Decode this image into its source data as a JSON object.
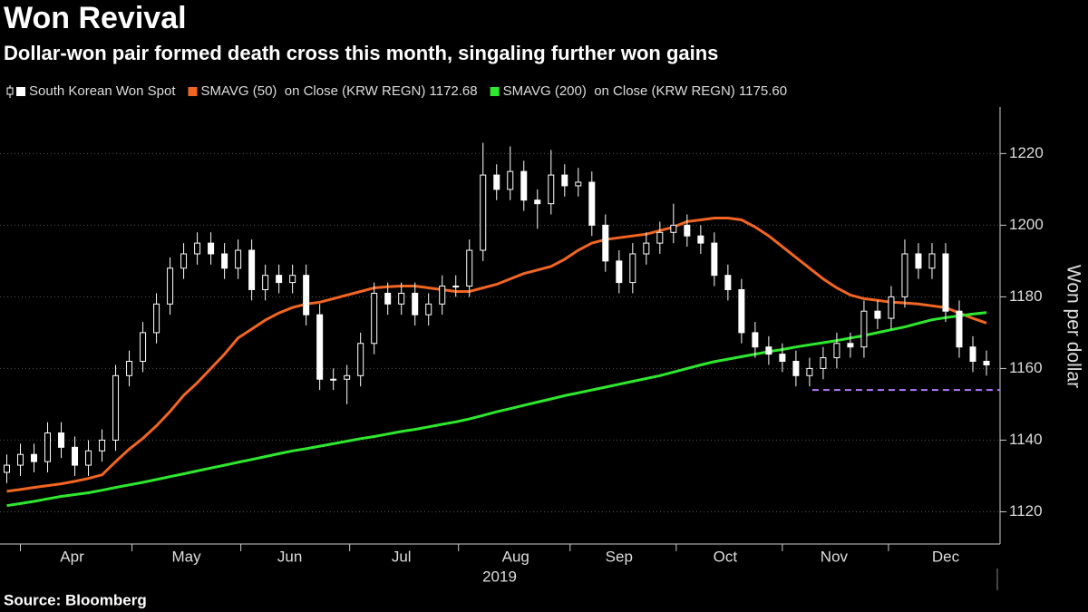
{
  "chart_data": {
    "type": "candlestick",
    "title": "Won Revival",
    "subtitle": "Dollar-won pair formed death cross this month, singaling further won gains",
    "source": "Source: Bloomberg",
    "y_label": "Won per dollar",
    "x_label": "2019",
    "categories": [
      null,
      null,
      null,
      null,
      null,
      null,
      null,
      null,
      null,
      null,
      null,
      null,
      null,
      null,
      null,
      null,
      null,
      null,
      null,
      null,
      null,
      null,
      null,
      null,
      null,
      null,
      null,
      null,
      null,
      null,
      null,
      null,
      null,
      null,
      null,
      null,
      null,
      null,
      null,
      null,
      null,
      null,
      null,
      null,
      null,
      null,
      null,
      null,
      null,
      null,
      null,
      null,
      null,
      null,
      null,
      null,
      null,
      null,
      null,
      null,
      null,
      null,
      null,
      null,
      null,
      null,
      null,
      null,
      null,
      null,
      null,
      null,
      null
    ],
    "candles": {
      "name": "South Korean Won Spot",
      "color": "#ffffff",
      "open": [
        1131,
        1133,
        1136,
        1134,
        1142,
        1138,
        1133,
        1137,
        1140,
        1158,
        1162,
        1170,
        1178,
        1188,
        1192,
        1195,
        1192,
        1188,
        1193,
        1182,
        1186,
        1184,
        1186,
        1175,
        1157,
        1157,
        1158,
        1167,
        1181,
        1178,
        1181,
        1175,
        1178,
        1183,
        1183,
        1193,
        1214,
        1210,
        1215,
        1207,
        1206,
        1214,
        1211,
        1212,
        1200,
        1190,
        1184,
        1192,
        1195,
        1198,
        1200,
        1197,
        1195,
        1186,
        1182,
        1170,
        1166,
        1164,
        1162,
        1158,
        1160,
        1163,
        1167,
        1166,
        1176,
        1174,
        1180,
        1192,
        1188,
        1192,
        1176,
        1166,
        1162
      ],
      "high": [
        1136,
        1139,
        1139,
        1145,
        1145,
        1141,
        1140,
        1143,
        1161,
        1165,
        1173,
        1181,
        1191,
        1195,
        1198,
        1198,
        1195,
        1196,
        1196,
        1189,
        1189,
        1189,
        1189,
        1178,
        1160,
        1161,
        1170,
        1184,
        1184,
        1184,
        1184,
        1181,
        1186,
        1186,
        1196,
        1223,
        1217,
        1222,
        1218,
        1210,
        1221,
        1217,
        1216,
        1215,
        1203,
        1193,
        1195,
        1198,
        1201,
        1206,
        1203,
        1200,
        1198,
        1189,
        1185,
        1173,
        1169,
        1167,
        1165,
        1163,
        1166,
        1170,
        1170,
        1179,
        1179,
        1183,
        1196,
        1195,
        1195,
        1195,
        1179,
        1169,
        1165
      ],
      "low": [
        1128,
        1130,
        1131,
        1131,
        1135,
        1130,
        1130,
        1134,
        1137,
        1155,
        1159,
        1167,
        1175,
        1185,
        1189,
        1189,
        1185,
        1185,
        1179,
        1179,
        1181,
        1181,
        1172,
        1154,
        1154,
        1150,
        1155,
        1164,
        1175,
        1175,
        1172,
        1172,
        1175,
        1180,
        1180,
        1190,
        1207,
        1207,
        1204,
        1199,
        1203,
        1208,
        1208,
        1197,
        1187,
        1181,
        1181,
        1189,
        1192,
        1195,
        1194,
        1192,
        1183,
        1179,
        1167,
        1163,
        1161,
        1159,
        1155,
        1155,
        1157,
        1160,
        1163,
        1163,
        1171,
        1171,
        1177,
        1185,
        1185,
        1173,
        1163,
        1159,
        1158
      ],
      "close": [
        1133,
        1136,
        1134,
        1142,
        1138,
        1133,
        1137,
        1140,
        1158,
        1162,
        1170,
        1178,
        1188,
        1192,
        1195,
        1192,
        1188,
        1193,
        1182,
        1186,
        1184,
        1186,
        1175,
        1157,
        1157,
        1158,
        1167,
        1181,
        1178,
        1181,
        1175,
        1178,
        1183,
        1183,
        1193,
        1214,
        1210,
        1215,
        1207,
        1206,
        1214,
        1211,
        1212,
        1200,
        1190,
        1184,
        1192,
        1195,
        1198,
        1200,
        1197,
        1195,
        1186,
        1182,
        1170,
        1166,
        1164,
        1162,
        1158,
        1160,
        1163,
        1167,
        1166,
        1176,
        1174,
        1180,
        1192,
        1188,
        1192,
        1176,
        1166,
        1162,
        1161
      ]
    },
    "series": [
      {
        "name": "SMAVG (50)  on Close (KRW REGN) 1172.68",
        "color": "#f26522",
        "values": [
          1125.7,
          1126.2,
          1126.8,
          1127.3,
          1127.8,
          1128.5,
          1129.3,
          1130.3,
          1134,
          1137.5,
          1140.5,
          1144,
          1148,
          1152.5,
          1156,
          1160,
          1164,
          1168.5,
          1171,
          1173.5,
          1175.5,
          1177,
          1178,
          1178.5,
          1179.5,
          1180.5,
          1181.5,
          1182.5,
          1182.8,
          1183,
          1183,
          1182.5,
          1182,
          1181.5,
          1181.5,
          1182.5,
          1183.5,
          1185,
          1186.5,
          1187.5,
          1188.5,
          1190.5,
          1193,
          1195,
          1196,
          1196.5,
          1197,
          1197.5,
          1198.5,
          1199.5,
          1201,
          1201.5,
          1202,
          1202,
          1201.5,
          1199.5,
          1197,
          1194,
          1191,
          1188,
          1185,
          1182.5,
          1180.5,
          1179.5,
          1179,
          1178.5,
          1178.3,
          1178,
          1177.5,
          1177,
          1175.5,
          1174,
          1172.68
        ]
      },
      {
        "name": "SMAVG (200)  on Close (KRW REGN) 1175.60",
        "color": "#2ee82e",
        "values": [
          1121.7,
          1122.3,
          1122.9,
          1123.6,
          1124.3,
          1124.8,
          1125.3,
          1126,
          1126.8,
          1127.5,
          1128.2,
          1129,
          1129.8,
          1130.6,
          1131.4,
          1132.2,
          1133,
          1133.8,
          1134.6,
          1135.4,
          1136.2,
          1137,
          1137.6,
          1138.3,
          1139,
          1139.7,
          1140.4,
          1141,
          1141.7,
          1142.4,
          1143,
          1143.7,
          1144.4,
          1145.1,
          1145.9,
          1146.9,
          1147.9,
          1148.8,
          1149.7,
          1150.6,
          1151.5,
          1152.4,
          1153.2,
          1154,
          1154.8,
          1155.6,
          1156.4,
          1157.2,
          1158,
          1159,
          1160,
          1161,
          1161.9,
          1162.6,
          1163.3,
          1164,
          1164.7,
          1165.3,
          1166,
          1166.6,
          1167.2,
          1167.8,
          1168.5,
          1169.2,
          1170,
          1170.8,
          1171.6,
          1172.6,
          1173.6,
          1174.2,
          1174.7,
          1175.2,
          1175.6
        ]
      }
    ],
    "reference_line": {
      "y": 1154,
      "x_start": 59.2,
      "color": "#b37bff",
      "dashed": true
    },
    "xlim": [
      -0.5,
      73
    ],
    "xticks": [
      {
        "value": 4.8,
        "label": "Apr"
      },
      {
        "value": 13.2,
        "label": "May"
      },
      {
        "value": 20.8,
        "label": "Jun"
      },
      {
        "value": 29,
        "label": "Jul"
      },
      {
        "value": 37.4,
        "label": "Aug"
      },
      {
        "value": 45,
        "label": "Sep"
      },
      {
        "value": 52.8,
        "label": "Oct"
      },
      {
        "value": 60.8,
        "label": "Nov"
      },
      {
        "value": 69,
        "label": "Dec"
      }
    ],
    "xticks_minor": [
      1,
      9.2,
      17.2,
      25.2,
      33.2,
      41.4,
      49.2,
      57,
      64.8
    ],
    "ylim": [
      1111,
      1233
    ],
    "yticks": [
      1120,
      1140,
      1160,
      1180,
      1200,
      1220
    ],
    "grid": true
  }
}
